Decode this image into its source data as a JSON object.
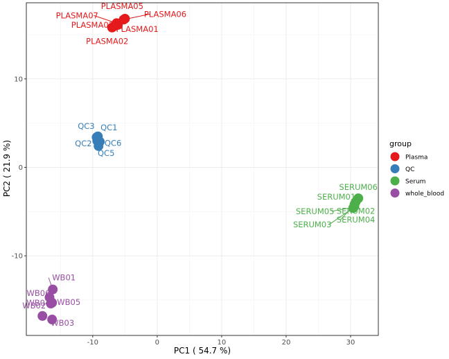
{
  "chart_data": {
    "type": "scatter",
    "xlabel": "PC1 ( 54.7 %)",
    "ylabel": "PC2 ( 21.9 %)",
    "xlim": [
      -20.3,
      34.3
    ],
    "ylim": [
      -19.0,
      18.6
    ],
    "x_ticks": [
      -10,
      0,
      10,
      20,
      30
    ],
    "y_ticks": [
      -10,
      0,
      10
    ],
    "grid": true,
    "legend": {
      "title": "group",
      "placement": "right",
      "entries": [
        {
          "name": "Plasma",
          "color": "#e41a1c"
        },
        {
          "name": "QC",
          "color": "#377eb8"
        },
        {
          "name": "Serum",
          "color": "#4daf4a"
        },
        {
          "name": "whole_blood",
          "color": "#984ea3"
        }
      ]
    },
    "series": [
      {
        "name": "Plasma",
        "color": "#e41a1c",
        "points": [
          {
            "label": "PLASMA01",
            "x": -6.1,
            "y": 16.1
          },
          {
            "label": "PLASMA02",
            "x": -7.0,
            "y": 15.8
          },
          {
            "label": "PLASMA03",
            "x": -6.5,
            "y": 16.0
          },
          {
            "label": "PLASMA05",
            "x": -5.0,
            "y": 16.8
          },
          {
            "label": "PLASMA06",
            "x": -5.2,
            "y": 16.7
          },
          {
            "label": "PLASMA07",
            "x": -6.3,
            "y": 16.3
          }
        ]
      },
      {
        "name": "QC",
        "color": "#377eb8",
        "points": [
          {
            "label": "QC1",
            "x": -9.2,
            "y": 3.5
          },
          {
            "label": "QC2",
            "x": -9.3,
            "y": 3.0
          },
          {
            "label": "QC3",
            "x": -9.4,
            "y": 3.4
          },
          {
            "label": "QC5",
            "x": -9.1,
            "y": 2.4
          },
          {
            "label": "QC6",
            "x": -8.9,
            "y": 2.9
          }
        ]
      },
      {
        "name": "Serum",
        "color": "#4daf4a",
        "points": [
          {
            "label": "SERUM01",
            "x": 30.8,
            "y": -3.9
          },
          {
            "label": "SERUM02",
            "x": 30.6,
            "y": -4.4
          },
          {
            "label": "SERUM03",
            "x": 30.4,
            "y": -4.6
          },
          {
            "label": "SERUM04",
            "x": 30.6,
            "y": -4.2
          },
          {
            "label": "SERUM05",
            "x": 30.5,
            "y": -4.5
          },
          {
            "label": "SERUM06",
            "x": 31.2,
            "y": -3.5
          }
        ]
      },
      {
        "name": "whole_blood",
        "color": "#984ea3",
        "points": [
          {
            "label": "WB01",
            "x": -16.2,
            "y": -13.8
          },
          {
            "label": "WB02",
            "x": -17.8,
            "y": -16.8
          },
          {
            "label": "WB03",
            "x": -16.3,
            "y": -17.2
          },
          {
            "label": "WB04",
            "x": -16.5,
            "y": -15.4
          },
          {
            "label": "WB05",
            "x": -16.3,
            "y": -15.3
          },
          {
            "label": "WB06",
            "x": -16.7,
            "y": -14.7
          }
        ]
      }
    ]
  }
}
